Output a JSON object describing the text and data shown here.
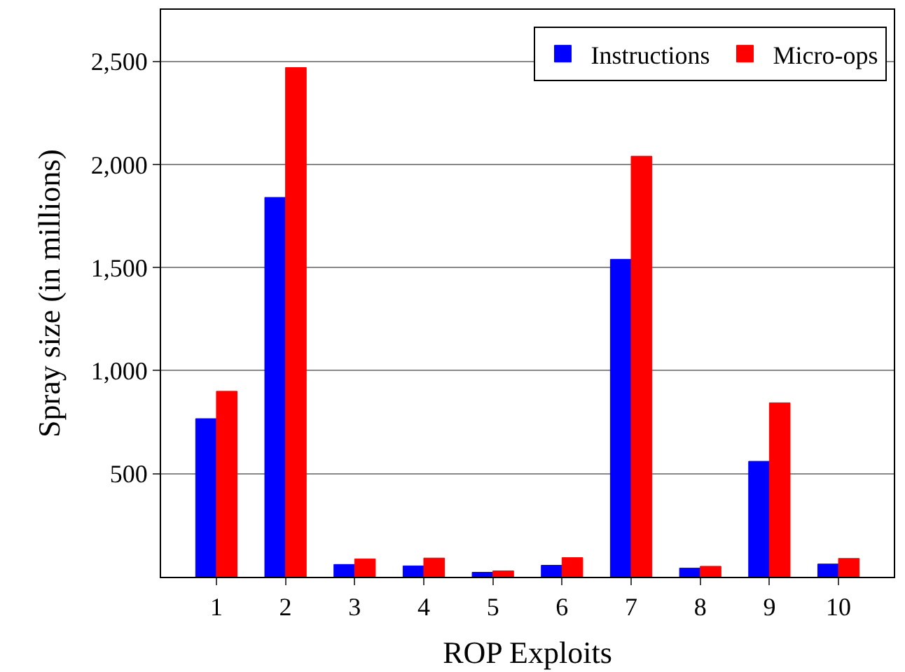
{
  "chart_data": {
    "type": "bar",
    "xlabel": "ROP Exploits",
    "ylabel": "Spray size (in millions)",
    "categories": [
      "1",
      "2",
      "3",
      "4",
      "5",
      "6",
      "7",
      "8",
      "9",
      "10"
    ],
    "series": [
      {
        "name": "Instructions",
        "color": "#0000ff",
        "values": [
          767,
          1840,
          60,
          53,
          22,
          56,
          1540,
          42,
          560,
          62
        ]
      },
      {
        "name": "Micro-ops",
        "color": "#ff0000",
        "values": [
          900,
          2470,
          87,
          91,
          29,
          93,
          2040,
          51,
          844,
          89
        ]
      }
    ],
    "ylim": [
      0,
      2750
    ],
    "yticks": [
      {
        "value": 500,
        "label": "500"
      },
      {
        "value": 1000,
        "label": "1,000"
      },
      {
        "value": 1500,
        "label": "1,500"
      },
      {
        "value": 2000,
        "label": "2,000"
      },
      {
        "value": 2500,
        "label": "2,500"
      }
    ],
    "grid": "y",
    "legend": "top right"
  }
}
